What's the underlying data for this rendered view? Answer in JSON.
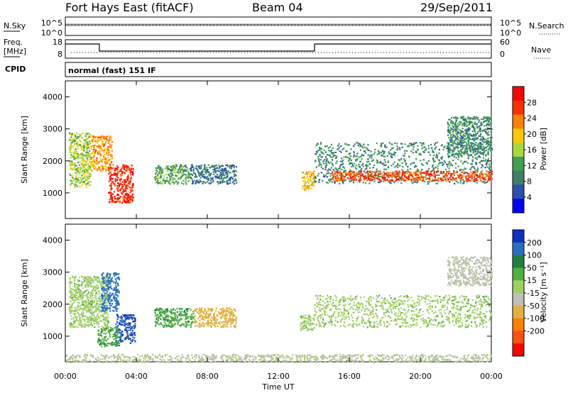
{
  "header": {
    "title": "Fort Hays East (fitACF)",
    "beam": "Beam 04",
    "date": "29/Sep/2011"
  },
  "noise_panel": {
    "left_label": "N.Sky",
    "right_label": "N.Search",
    "left_ticks": [
      "10^5",
      "10^0"
    ],
    "right_ticks": [
      "10^5",
      "10^0"
    ]
  },
  "freq_panel": {
    "left_label_1": "Freq.",
    "left_label_2": "[MHz]",
    "right_label": "Nave",
    "left_ticks": [
      "18",
      "8"
    ],
    "right_ticks": [
      "60",
      "0"
    ]
  },
  "cpid": {
    "label": "CPID",
    "value": "normal (fast) 151 IF"
  },
  "colors": {
    "power_scale": [
      "#0000ff",
      "#2a4fb0",
      "#3f7f6a",
      "#3fa050",
      "#a7d93f",
      "#ffc800",
      "#ff8000",
      "#ff3000",
      "#ff0000"
    ],
    "velocity_scale": [
      "#1030c0",
      "#2a70c0",
      "#1f8040",
      "#50b040",
      "#a0d060",
      "#c0c0b8",
      "#e0b040",
      "#ff8000",
      "#ff5010",
      "#ff0000"
    ]
  },
  "chart_data": [
    {
      "type": "heatmap",
      "ylabel": "Slant Range [km]",
      "yticks": [
        "1000",
        "2000",
        "3000",
        "4000"
      ],
      "ylim": [
        200,
        4500
      ],
      "colorbar_label": "Power [dB]",
      "colorbar_ticks": [
        "4",
        "8",
        "12",
        "16",
        "20",
        "24",
        "28"
      ],
      "regions": [
        {
          "t": [
            0.2,
            1.4
          ],
          "r": [
            1200,
            2900
          ],
          "value": 16
        },
        {
          "t": [
            1.4,
            2.6
          ],
          "r": [
            1700,
            2800
          ],
          "value": 22
        },
        {
          "t": [
            2.4,
            3.8
          ],
          "r": [
            700,
            1900
          ],
          "value": 28
        },
        {
          "t": [
            5.0,
            7.0
          ],
          "r": [
            1300,
            1900
          ],
          "value": 12
        },
        {
          "t": [
            7.0,
            9.6
          ],
          "r": [
            1300,
            1900
          ],
          "value": 8
        },
        {
          "t": [
            13.3,
            14.0
          ],
          "r": [
            1100,
            1700
          ],
          "value": 20
        },
        {
          "t": [
            14.0,
            24.0
          ],
          "r": [
            1300,
            2600
          ],
          "value": 10
        },
        {
          "t": [
            15.0,
            24.0
          ],
          "r": [
            1400,
            1700
          ],
          "value": 26
        },
        {
          "t": [
            21.5,
            24.0
          ],
          "r": [
            2200,
            3400
          ],
          "value": 10
        }
      ]
    },
    {
      "type": "heatmap",
      "ylabel": "Slant Range [km]",
      "yticks": [
        "1000",
        "2000",
        "3000",
        "4000"
      ],
      "ylim": [
        200,
        4500
      ],
      "xlabel": "Time UT",
      "xticks": [
        "00:00",
        "04:00",
        "08:00",
        "12:00",
        "16:00",
        "20:00",
        "00:00"
      ],
      "xlim": [
        0,
        24
      ],
      "colorbar_label": "Velocity [m s⁻¹]",
      "colorbar_ticks": [
        "200",
        "100",
        "50",
        "15",
        "-15",
        "-50",
        "-100",
        "-200"
      ],
      "regions": [
        {
          "t": [
            0.2,
            2.4
          ],
          "r": [
            1300,
            2900
          ],
          "value": 0
        },
        {
          "t": [
            2.0,
            3.0
          ],
          "r": [
            1800,
            3000
          ],
          "value": 150
        },
        {
          "t": [
            2.8,
            3.9
          ],
          "r": [
            800,
            1700
          ],
          "value": 200
        },
        {
          "t": [
            1.8,
            3.0
          ],
          "r": [
            700,
            1300
          ],
          "value": 40
        },
        {
          "t": [
            5.0,
            7.2
          ],
          "r": [
            1300,
            1900
          ],
          "value": 40
        },
        {
          "t": [
            7.2,
            9.6
          ],
          "r": [
            1300,
            1900
          ],
          "value": -70
        },
        {
          "t": [
            13.2,
            14.0
          ],
          "r": [
            1200,
            1700
          ],
          "value": 0
        },
        {
          "t": [
            14.0,
            24.0
          ],
          "r": [
            1300,
            2300
          ],
          "value": 0
        },
        {
          "t": [
            21.5,
            24.0
          ],
          "r": [
            2600,
            3500
          ],
          "value": -30
        },
        {
          "t": [
            0.0,
            24.0
          ],
          "r": [
            200,
            450
          ],
          "value": -20
        }
      ]
    }
  ]
}
